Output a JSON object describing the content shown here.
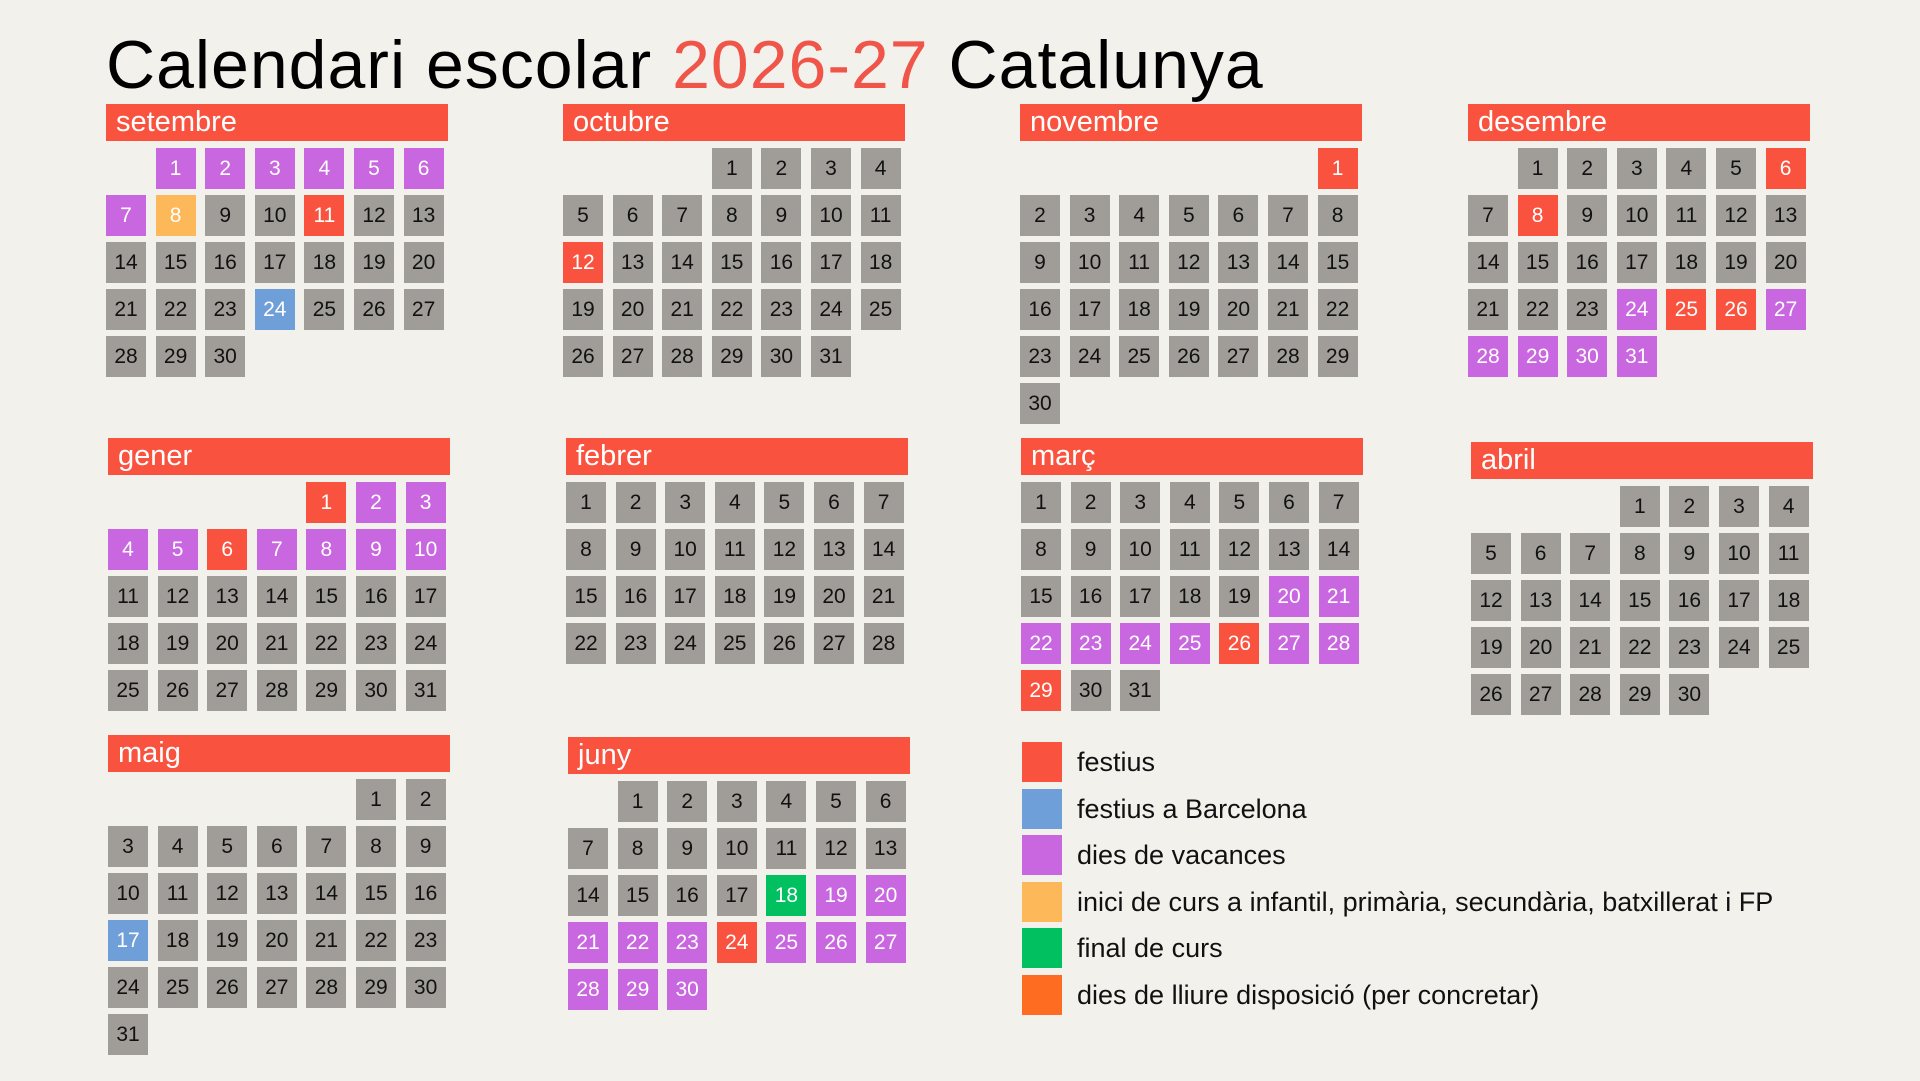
{
  "title": {
    "part1": "Calendari escolar ",
    "year": "2026-27",
    "part2": " Catalunya"
  },
  "colors": {
    "default": "#a09d98",
    "festius": "#f95340",
    "festius_barcelona": "#6f9fd8",
    "vacances": "#c867e0",
    "inici": "#fdb85a",
    "final": "#00c060",
    "lliure": "#fd6c20",
    "header": "#f95340",
    "accent": "#f0554a"
  },
  "months": [
    {
      "name": "setembre",
      "first_weekday": 2,
      "days": 30,
      "marks": {
        "1": "vacances",
        "2": "vacances",
        "3": "vacances",
        "4": "vacances",
        "5": "vacances",
        "6": "vacances",
        "7": "vacances",
        "8": "inici",
        "11": "festius",
        "24": "festius_barcelona"
      }
    },
    {
      "name": "octubre",
      "first_weekday": 4,
      "days": 31,
      "marks": {
        "12": "festius"
      }
    },
    {
      "name": "novembre",
      "first_weekday": 7,
      "days": 30,
      "marks": {
        "1": "festius"
      }
    },
    {
      "name": "desembre",
      "first_weekday": 2,
      "days": 31,
      "marks": {
        "6": "festius",
        "8": "festius",
        "24": "vacances",
        "25": "festius",
        "26": "festius",
        "27": "vacances",
        "28": "vacances",
        "29": "vacances",
        "30": "vacances",
        "31": "vacances"
      }
    },
    {
      "name": "gener",
      "first_weekday": 5,
      "days": 31,
      "marks": {
        "1": "festius",
        "2": "vacances",
        "3": "vacances",
        "4": "vacances",
        "5": "vacances",
        "6": "festius",
        "7": "vacances",
        "8": "vacances",
        "9": "vacances",
        "10": "vacances"
      }
    },
    {
      "name": "febrer",
      "first_weekday": 1,
      "days": 28,
      "marks": {}
    },
    {
      "name": "març",
      "first_weekday": 1,
      "days": 31,
      "marks": {
        "20": "vacances",
        "21": "vacances",
        "22": "vacances",
        "23": "vacances",
        "24": "vacances",
        "25": "vacances",
        "26": "festius",
        "27": "vacances",
        "28": "vacances",
        "29": "festius"
      }
    },
    {
      "name": "abril",
      "first_weekday": 4,
      "days": 30,
      "marks": {}
    },
    {
      "name": "maig",
      "first_weekday": 6,
      "days": 31,
      "marks": {
        "17": "festius_barcelona"
      }
    },
    {
      "name": "juny",
      "first_weekday": 2,
      "days": 30,
      "marks": {
        "18": "final",
        "19": "vacances",
        "20": "vacances",
        "21": "vacances",
        "22": "vacances",
        "23": "vacances",
        "24": "festius",
        "25": "vacances",
        "26": "vacances",
        "27": "vacances",
        "28": "vacances",
        "29": "vacances",
        "30": "vacances"
      }
    }
  ],
  "legend": [
    {
      "key": "festius",
      "label": "festius"
    },
    {
      "key": "festius_barcelona",
      "label": "festius a Barcelona"
    },
    {
      "key": "vacances",
      "label": "dies de vacances"
    },
    {
      "key": "inici",
      "label": "inici de curs a infantil, primària, secundària, batxillerat i FP"
    },
    {
      "key": "final",
      "label": "final de curs"
    },
    {
      "key": "lliure",
      "label": "dies de lliure disposició (per concretar)"
    }
  ]
}
